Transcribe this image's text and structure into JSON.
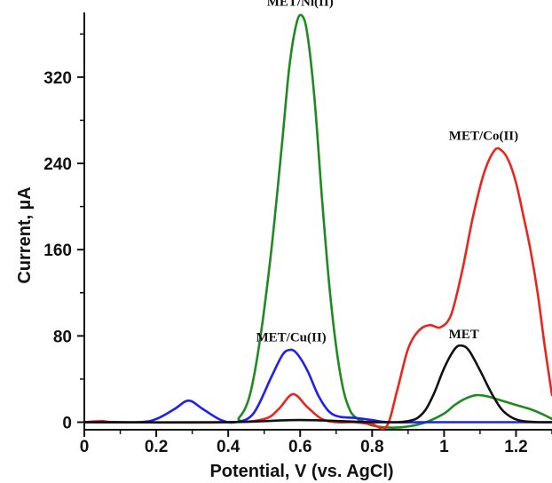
{
  "chart_data": {
    "type": "line",
    "title": "",
    "xlabel": "Potential, V (vs. AgCl)",
    "ylabel": "Current, µA",
    "xlim": [
      0,
      1.3
    ],
    "ylim": [
      -7,
      380
    ],
    "x_ticks": [
      "0",
      "0.2",
      "0.4",
      "0.6",
      "0.8",
      "1",
      "1.2"
    ],
    "x_tick_values": [
      0,
      0.2,
      0.4,
      0.6,
      0.8,
      1.0,
      1.2
    ],
    "y_ticks": [
      "0",
      "80",
      "160",
      "240",
      "320"
    ],
    "y_tick_values": [
      0,
      80,
      160,
      240,
      320
    ],
    "grid": false,
    "legend": "none",
    "series": [
      {
        "name": "MET/Ni(II)",
        "color": "#1f8a1f",
        "x": [
          0,
          0.4,
          0.43,
          0.46,
          0.49,
          0.52,
          0.55,
          0.57,
          0.59,
          0.605,
          0.62,
          0.64,
          0.66,
          0.68,
          0.7,
          0.72,
          0.74,
          0.76,
          0.78,
          0.8,
          0.85,
          0.9,
          0.95,
          1.0,
          1.03,
          1.06,
          1.09,
          1.12,
          1.15,
          1.18,
          1.21,
          1.24,
          1.27,
          1.3
        ],
        "y": [
          0,
          0,
          4,
          25,
          80,
          160,
          260,
          330,
          370,
          377,
          360,
          300,
          210,
          130,
          70,
          30,
          10,
          3,
          0,
          -3,
          -5,
          -4,
          0,
          8,
          16,
          22,
          25,
          24,
          21,
          18,
          15,
          12,
          8,
          3
        ]
      },
      {
        "name": "MET/Co(II)",
        "color": "#e8261e",
        "x": [
          0,
          0.05,
          0.1,
          0.4,
          0.5,
          0.54,
          0.58,
          0.62,
          0.66,
          0.7,
          0.75,
          0.8,
          0.84,
          0.87,
          0.9,
          0.93,
          0.96,
          0.99,
          1.02,
          1.05,
          1.08,
          1.11,
          1.14,
          1.16,
          1.18,
          1.2,
          1.22,
          1.24,
          1.26,
          1.28,
          1.3
        ],
        "y": [
          0,
          1,
          0,
          0,
          3,
          12,
          26,
          14,
          3,
          0,
          0,
          -2,
          -4,
          30,
          68,
          85,
          90,
          88,
          100,
          140,
          190,
          230,
          252,
          252,
          242,
          222,
          192,
          160,
          120,
          70,
          25
        ]
      },
      {
        "name": "MET/Cu(II)",
        "color": "#1f1ff0",
        "x": [
          0,
          0.15,
          0.2,
          0.25,
          0.29,
          0.33,
          0.38,
          0.42,
          0.47,
          0.52,
          0.55,
          0.57,
          0.59,
          0.62,
          0.65,
          0.68,
          0.71,
          0.75,
          0.8,
          0.85,
          1.0,
          1.3
        ],
        "y": [
          0,
          0,
          3,
          12,
          20,
          12,
          2,
          0,
          8,
          42,
          62,
          67,
          64,
          48,
          25,
          10,
          5,
          4,
          2,
          0,
          0,
          0
        ]
      },
      {
        "name": "MET",
        "color": "#111111",
        "x": [
          0,
          0.4,
          0.6,
          0.8,
          0.9,
          0.94,
          0.97,
          1.0,
          1.03,
          1.05,
          1.07,
          1.1,
          1.13,
          1.16,
          1.19,
          1.22,
          1.26,
          1.3
        ],
        "y": [
          0,
          0,
          2,
          0,
          1,
          8,
          25,
          50,
          68,
          71,
          66,
          48,
          28,
          12,
          4,
          1,
          0,
          0
        ]
      }
    ],
    "annotations": [
      {
        "text": "MET/Ni(II)",
        "x": 0.6,
        "y": 386
      },
      {
        "text": "MET/Co(II)",
        "x": 1.11,
        "y": 262
      },
      {
        "text": "MET/Cu(II)",
        "x": 0.575,
        "y": 75
      },
      {
        "text": "MET",
        "x": 1.055,
        "y": 78
      }
    ]
  }
}
